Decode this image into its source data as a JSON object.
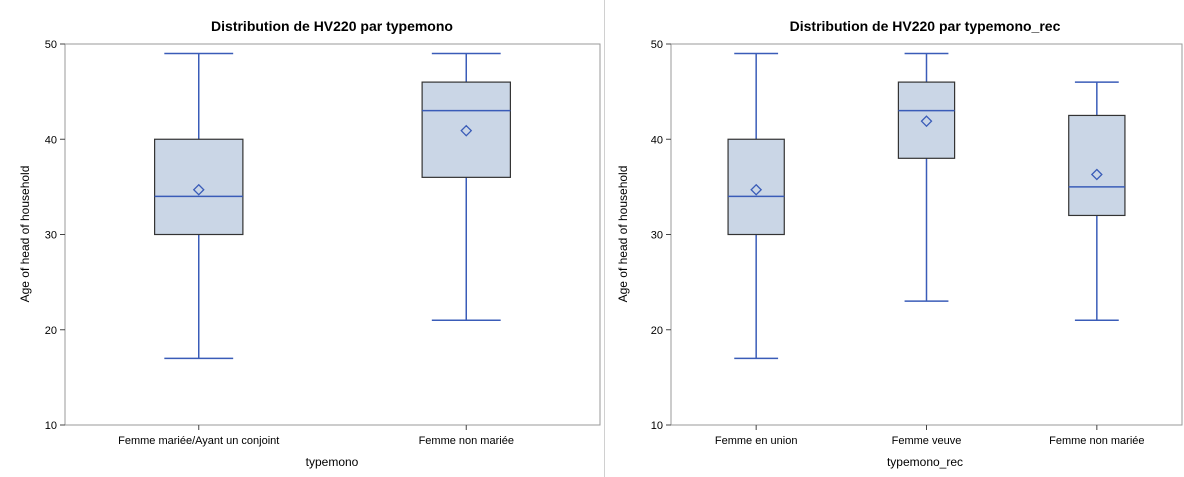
{
  "colors": {
    "box_fill": "#cad6e6",
    "box_border": "#333333",
    "accent": "#3a5cb8",
    "frame": "#9a9a9a"
  },
  "chart_data": [
    {
      "type": "box",
      "title": "Distribution de HV220 par typemono",
      "xlabel": "typemono",
      "ylabel": "Age of head of household",
      "ylim": [
        10,
        50
      ],
      "yticks": [
        "10",
        "20",
        "30",
        "40",
        "50"
      ],
      "categories": [
        "Femme mariée/Ayant un conjoint",
        "Femme non mariée"
      ],
      "boxes": [
        {
          "min": 17,
          "q1": 30,
          "median": 34,
          "q3": 40,
          "max": 49,
          "mean": 34.7
        },
        {
          "min": 21,
          "q1": 36,
          "median": 43,
          "q3": 46,
          "max": 49,
          "mean": 40.9
        }
      ]
    },
    {
      "type": "box",
      "title": "Distribution de HV220 par typemono_rec",
      "xlabel": "typemono_rec",
      "ylabel": "Age of head of household",
      "ylim": [
        10,
        50
      ],
      "yticks": [
        "10",
        "20",
        "30",
        "40",
        "50"
      ],
      "categories": [
        "Femme en union",
        "Femme veuve",
        "Femme non mariée"
      ],
      "boxes": [
        {
          "min": 17,
          "q1": 30,
          "median": 34,
          "q3": 40,
          "max": 49,
          "mean": 34.7
        },
        {
          "min": 23,
          "q1": 38,
          "median": 43,
          "q3": 46,
          "max": 49,
          "mean": 41.9
        },
        {
          "min": 21,
          "q1": 32,
          "median": 35,
          "q3": 42.5,
          "max": 46,
          "mean": 36.3
        }
      ]
    }
  ]
}
